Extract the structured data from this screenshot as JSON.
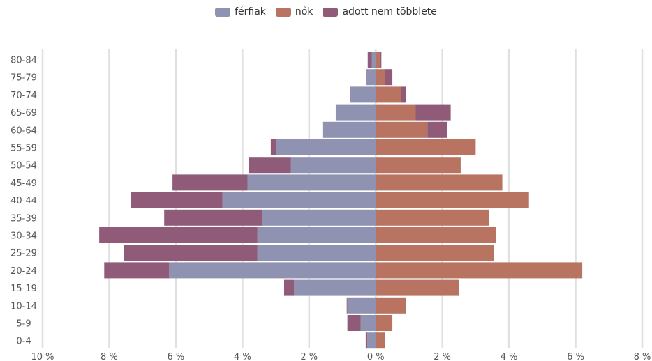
{
  "chart_data": {
    "type": "bar",
    "orientation": "horizontal",
    "stacked": true,
    "categories": [
      "0-4",
      "5-9",
      "10-14",
      "15-19",
      "20-24",
      "25-29",
      "30-34",
      "35-39",
      "40-44",
      "45-49",
      "50-54",
      "55-59",
      "60-64",
      "65-69",
      "70-74",
      "75-79",
      "80-84"
    ],
    "legend": {
      "position": "top-center",
      "items": [
        "férfiak",
        "nők",
        "adott nem többlete"
      ]
    },
    "series": [
      {
        "name": "férfiak",
        "side": "left",
        "color": "#8f93b1",
        "values": [
          0.25,
          0.45,
          0.85,
          2.45,
          6.2,
          3.55,
          3.55,
          3.4,
          4.6,
          3.85,
          2.55,
          3.0,
          1.6,
          1.2,
          0.78,
          0.28,
          0.12
        ]
      },
      {
        "name": "nők",
        "side": "right",
        "color": "#b87461",
        "values": [
          0.28,
          0.5,
          0.9,
          2.5,
          6.2,
          3.55,
          3.6,
          3.4,
          4.6,
          3.8,
          2.55,
          3.0,
          1.55,
          1.2,
          0.75,
          0.27,
          0.12
        ]
      },
      {
        "name": "adott nem többlete",
        "color": "#8f5b79",
        "left_values": [
          0.05,
          0.4,
          0.02,
          0.3,
          1.95,
          4.0,
          4.75,
          2.95,
          2.75,
          2.25,
          1.25,
          0.15,
          0,
          0,
          0,
          0,
          0.12
        ],
        "right_values": [
          0,
          0,
          0,
          0,
          0,
          0,
          0,
          0,
          0,
          0,
          0,
          0,
          0.6,
          1.05,
          0.15,
          0.23,
          0.05
        ]
      }
    ],
    "xlim": [
      -10,
      8
    ],
    "xticks": [
      "10 %",
      "8 %",
      "6 %",
      "4 %",
      "2 %",
      "0 %",
      "2 %",
      "4 %",
      "6 %",
      "8 %"
    ],
    "grid": true,
    "title": "",
    "xlabel": "",
    "ylabel": ""
  },
  "colors": {
    "men": "#8f93b1",
    "women": "#b87461",
    "surplus": "#8f5b79",
    "grid": "#e0e0e0",
    "tick_text": "#555555"
  }
}
